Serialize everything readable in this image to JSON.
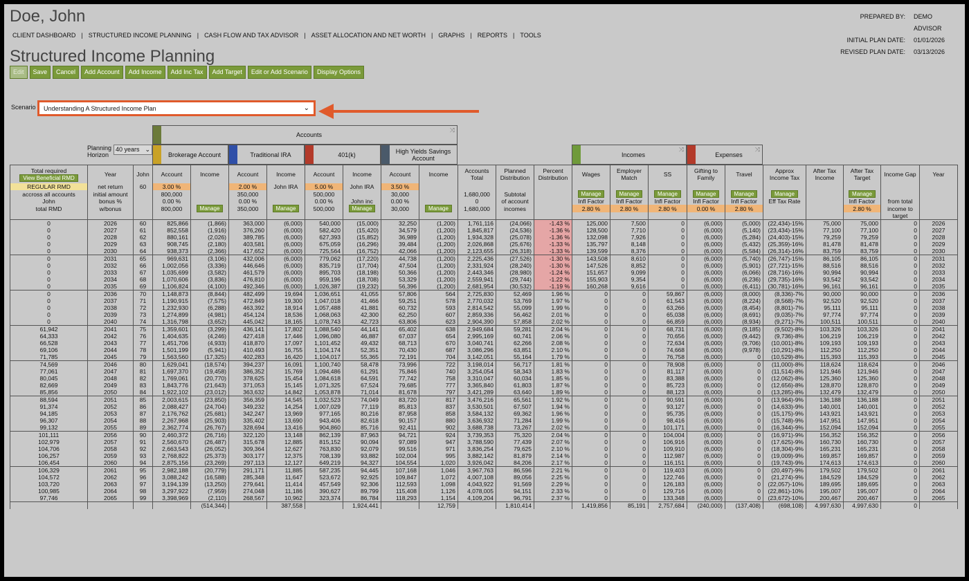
{
  "client_name": "Doe, John",
  "plan_info": [
    {
      "label": "PREPARED BY:",
      "value": "DEMO ADVISOR"
    },
    {
      "label": "INITIAL PLAN DATE:",
      "value": "01/01/2026"
    },
    {
      "label": "REVISED PLAN DATE:",
      "value": "03/13/2026"
    }
  ],
  "nav": [
    "CLIENT DASHBOARD",
    "STRUCTURED INCOME PLANNING",
    "CASH FLOW AND TAX ADVISOR",
    "ASSET ALLOCATION AND NET WORTH",
    "GRAPHS",
    "REPORTS",
    "TOOLS"
  ],
  "page_title": "Structured Income Planning",
  "toolbar": [
    "Edit",
    "Save",
    "Cancel",
    "Add Account",
    "Add Income",
    "Add Inc Tax",
    "Add Target",
    "Edit or Add Scenario",
    "Display Options"
  ],
  "scenario": {
    "label": "Scenario",
    "value": "Understanding A Structured Income Plan"
  },
  "horizon": {
    "label": "Planning Horizon",
    "value": "40 years"
  },
  "groups": {
    "accounts": "Accounts",
    "incomes": "Incomes",
    "expenses": "Expenses"
  },
  "accounts": [
    "Brokerage Account",
    "Traditional IRA",
    "401(k)",
    "High Yields Savings Account"
  ],
  "colors": {
    "brokerage": "#c9a227",
    "ira": "#2f4fa8",
    "k401": "#b33a2a",
    "savings": "#4a5a6a",
    "accounts_bar": "#6b7a3a",
    "incomes_bar": "#6f9a3a",
    "expenses_bar": "#b33a2a",
    "accent_green": "#7a9a3a",
    "callout": "#e05a2b"
  },
  "headers": [
    "Total required",
    "Year",
    "John",
    "Account",
    "Income",
    "Account",
    "Income",
    "Account",
    "Income",
    "Account",
    "Income",
    "Accounts Total",
    "Planned Distribution",
    "Percent Distribution",
    "Wages",
    "Employer Match",
    "SS",
    "Gifting to Family",
    "Travel",
    "Approx Income Tax",
    "After Tax Income",
    "After Tax Target",
    "Income Gap",
    "Year"
  ],
  "view_rmd_button": "View Beneficial RMD",
  "setup": {
    "r1": [
      "REGULAR RMD",
      "net return",
      "60",
      "3.00  %",
      "",
      "2.00  %",
      "John IRA",
      "5.00  %",
      "John IRA",
      "3.50  %",
      "",
      "",
      "",
      "",
      "",
      "",
      "",
      "",
      "",
      "",
      "",
      "",
      "",
      ""
    ],
    "r2": [
      "accross all accounts",
      "initial amount",
      "",
      "800,000",
      "",
      "350,000",
      "",
      "500,000",
      "",
      "30,000",
      "",
      "1,680,000",
      "Subtotal",
      "",
      "Manage",
      "Manage",
      "Manage",
      "Manage",
      "Manage",
      "Manage",
      "",
      "Manage",
      "",
      ""
    ],
    "r3": [
      "John",
      "bonus %",
      "",
      "0.00  %",
      "",
      "0.00  %",
      "",
      "0.00  %",
      "John inc",
      "0.00  %",
      "",
      "0",
      "of account",
      "",
      "Infl Factor",
      "Infl Factor",
      "Infl Factor",
      "Infl Factor",
      "Infl Factor",
      "Eff Tax Rate",
      "",
      "Infl Factor",
      "from total",
      ""
    ],
    "r4": [
      "total RMD",
      "w/bonus",
      "",
      "800,000",
      "Manage",
      "350,000",
      "Manage",
      "500,000",
      "Manage",
      "30,000",
      "Manage",
      "1,680,000",
      "incomes",
      "",
      "2.80  %",
      "2.80  %",
      "2.80  %",
      "0.00  %",
      "2.80  %",
      "",
      "",
      "2.80  %",
      "income to",
      ""
    ],
    "r5": [
      "",
      "",
      "",
      "",
      "",
      "",
      "",
      "",
      "",
      "",
      "",
      "",
      "",
      "",
      "",
      "",
      "",
      "",
      "",
      "",
      "",
      "",
      "target",
      ""
    ]
  },
  "rows": [
    [
      "0",
      "2026",
      "60",
      "825,866",
      "(1,866)",
      "363,000",
      "(6,000)",
      "540,000",
      "(15,000)",
      "32,250",
      "(1,200)",
      "1,761,116",
      "(24,066)",
      "-1.43  %",
      "125,000",
      "7,500",
      "0",
      "(6,000)",
      "(5,000)",
      "(22,434)-15%",
      "75,000",
      "75,000",
      "0",
      "2026"
    ],
    [
      "0",
      "2027",
      "61",
      "852,558",
      "(1,916)",
      "376,260",
      "(6,000)",
      "582,420",
      "(15,420)",
      "34,579",
      "(1,200)",
      "1,845,817",
      "(24,536)",
      "-1.36  %",
      "128,500",
      "7,710",
      "0",
      "(6,000)",
      "(5,140)",
      "(23,434)-15%",
      "77,100",
      "77,100",
      "0",
      "2027"
    ],
    [
      "0",
      "2028",
      "62",
      "880,161",
      "(2,026)",
      "389,785",
      "(6,000)",
      "627,393",
      "(15,852)",
      "36,989",
      "(1,200)",
      "1,934,328",
      "(25,078)",
      "-1.36  %",
      "132,098",
      "7,926",
      "0",
      "(6,000)",
      "(5,284)",
      "(24,403)-15%",
      "79,259",
      "79,259",
      "0",
      "2028"
    ],
    [
      "0",
      "2029",
      "63",
      "908,745",
      "(2,180)",
      "403,581",
      "(6,000)",
      "675,059",
      "(16,296)",
      "39,484",
      "(1,200)",
      "2,026,868",
      "(25,676)",
      "-1.33  %",
      "135,797",
      "8,148",
      "0",
      "(6,000)",
      "(5,432)",
      "(25,359)-16%",
      "81,478",
      "81,478",
      "0",
      "2029"
    ],
    [
      "0",
      "2030",
      "64",
      "938,373",
      "(2,366)",
      "417,652",
      "(6,000)",
      "725,564",
      "(16,752)",
      "42,066",
      "(1,200)",
      "2,123,655",
      "(26,318)",
      "-1.33  %",
      "139,599",
      "8,376",
      "0",
      "(6,000)",
      "(5,584)",
      "(26,314)-16%",
      "83,759",
      "83,759",
      "0",
      "2030"
    ],
    [
      "0",
      "2031",
      "65",
      "969,631",
      "(3,106)",
      "432,006",
      "(6,000)",
      "779,062",
      "(17,220)",
      "44,738",
      "(1,200)",
      "2,225,436",
      "(27,526)",
      "-1.30  %",
      "143,508",
      "8,610",
      "0",
      "(6,000)",
      "(5,740)",
      "(26,747)-15%",
      "86,105",
      "86,105",
      "0",
      "2031"
    ],
    [
      "0",
      "2032",
      "66",
      "1,002,056",
      "(3,336)",
      "446,646",
      "(6,000)",
      "835,719",
      "(17,704)",
      "47,504",
      "(1,200)",
      "2,331,924",
      "(28,240)",
      "-1.30  %",
      "147,526",
      "8,852",
      "0",
      "(6,000)",
      "(5,901)",
      "(27,721)-15%",
      "88,516",
      "88,516",
      "0",
      "2032"
    ],
    [
      "0",
      "2033",
      "67",
      "1,035,699",
      "(3,582)",
      "461,579",
      "(6,000)",
      "895,703",
      "(18,198)",
      "50,366",
      "(1,200)",
      "2,443,346",
      "(28,980)",
      "-1.24  %",
      "151,657",
      "9,099",
      "0",
      "(6,000)",
      "(6,066)",
      "(28,716)-16%",
      "90,994",
      "90,994",
      "0",
      "2033"
    ],
    [
      "0",
      "2034",
      "68",
      "1,070,606",
      "(3,836)",
      "476,810",
      "(6,000)",
      "959,196",
      "(18,708)",
      "53,329",
      "(1,200)",
      "2,559,941",
      "(29,744)",
      "-1.22  %",
      "155,903",
      "9,354",
      "0",
      "(6,000)",
      "(6,236)",
      "(29,735)-16%",
      "93,542",
      "93,542",
      "0",
      "2034"
    ],
    [
      "0",
      "2035",
      "69",
      "1,106,824",
      "(4,100)",
      "492,346",
      "(6,000)",
      "1,026,387",
      "(19,232)",
      "56,396",
      "(1,200)",
      "2,681,954",
      "(30,532)",
      "-1.19  %",
      "160,268",
      "9,616",
      "0",
      "(6,000)",
      "(6,411)",
      "(30,781)-16%",
      "96,161",
      "96,161",
      "0",
      "2035"
    ],
    [
      "0",
      "2036",
      "70",
      "1,148,873",
      "(8,844)",
      "482,499",
      "19,694",
      "1,036,651",
      "41,055",
      "57,806",
      "564",
      "2,725,830",
      "52,469",
      "1.96  %",
      "0",
      "0",
      "59,867",
      "(6,000)",
      "(8,000)",
      "(8,336)-7%",
      "90,000",
      "90,000",
      "0",
      "2036"
    ],
    [
      "0",
      "2037",
      "71",
      "1,190,915",
      "(7,575)",
      "472,849",
      "19,300",
      "1,047,018",
      "41,466",
      "59,251",
      "578",
      "2,770,032",
      "53,769",
      "1.97  %",
      "0",
      "0",
      "61,543",
      "(6,000)",
      "(8,224)",
      "(8,568)-7%",
      "92,520",
      "92,520",
      "0",
      "2037"
    ],
    [
      "0",
      "2038",
      "72",
      "1,232,930",
      "(6,288)",
      "463,392",
      "18,914",
      "1,057,488",
      "41,881",
      "60,732",
      "593",
      "2,814,542",
      "55,099",
      "1.99  %",
      "0",
      "0",
      "63,266",
      "(6,000)",
      "(8,454)",
      "(8,801)-7%",
      "95,111",
      "95,111",
      "0",
      "2038"
    ],
    [
      "0",
      "2039",
      "73",
      "1,274,899",
      "(4,981)",
      "454,124",
      "18,536",
      "1,068,063",
      "42,300",
      "62,250",
      "607",
      "2,859,336",
      "56,462",
      "2.01  %",
      "0",
      "0",
      "65,038",
      "(6,000)",
      "(8,691)",
      "(9,035)-7%",
      "97,774",
      "97,774",
      "0",
      "2039"
    ],
    [
      "0",
      "2040",
      "74",
      "1,316,798",
      "(3,652)",
      "445,042",
      "18,165",
      "1,078,743",
      "42,723",
      "63,806",
      "623",
      "2,904,390",
      "57,858",
      "2.02  %",
      "0",
      "0",
      "66,859",
      "(6,000)",
      "(8,934)",
      "(9,271)-7%",
      "100,511",
      "100,511",
      "0",
      "2040"
    ],
    [
      "61,942",
      "2041",
      "75",
      "1,359,601",
      "(3,299)",
      "436,141",
      "17,802",
      "1,088,540",
      "44,141",
      "65,402",
      "638",
      "2,949,684",
      "59,281",
      "2.04  %",
      "0",
      "0",
      "68,731",
      "(6,000)",
      "(9,185)",
      "(9,502)-8%",
      "103,326",
      "103,326",
      "0",
      "2041"
    ],
    [
      "64,333",
      "2042",
      "76",
      "1,404,635",
      "(4,246)",
      "427,418",
      "17,446",
      "1,096,080",
      "46,887",
      "67,037",
      "654",
      "2,995,169",
      "60,741",
      "2.06  %",
      "0",
      "0",
      "70,656",
      "(6,000)",
      "(9,442)",
      "(9,736)-8%",
      "106,219",
      "106,219",
      "0",
      "2042"
    ],
    [
      "66,528",
      "2043",
      "77",
      "1,451,706",
      "(4,933)",
      "418,870",
      "17,097",
      "1,101,452",
      "49,432",
      "68,713",
      "670",
      "3,040,741",
      "62,266",
      "2.08  %",
      "0",
      "0",
      "72,634",
      "(6,000)",
      "(9,706)",
      "(10,001)-8%",
      "109,193",
      "109,193",
      "0",
      "2043"
    ],
    [
      "69,106",
      "2044",
      "78",
      "1,501,199",
      "(5,941)",
      "410,493",
      "16,755",
      "1,104,174",
      "52,351",
      "70,430",
      "687",
      "3,086,296",
      "63,851",
      "2.10  %",
      "0",
      "0",
      "74,668",
      "(6,000)",
      "(9,978)",
      "(10,291)-8%",
      "112,250",
      "112,250",
      "0",
      "2044"
    ],
    [
      "71,785",
      "2045",
      "79",
      "1,563,560",
      "(17,325)",
      "402,283",
      "16,420",
      "1,104,017",
      "55,365",
      "72,191",
      "704",
      "3,142,051",
      "55,164",
      "1.79  %",
      "0",
      "0",
      "76,758",
      "(6,000)",
      "0",
      "(10,529)-8%",
      "115,393",
      "115,393",
      "0",
      "2045"
    ],
    [
      "74,569",
      "2046",
      "80",
      "1,629,041",
      "(18,574)",
      "394,237",
      "16,091",
      "1,100,740",
      "58,478",
      "73,996",
      "722",
      "3,198,014",
      "56,717",
      "1.81  %",
      "0",
      "0",
      "78,908",
      "(6,000)",
      "0",
      "(11,000)-8%",
      "118,624",
      "118,624",
      "0",
      "2046"
    ],
    [
      "77,061",
      "2047",
      "81",
      "1,697,370",
      "(19,458)",
      "386,352",
      "15,769",
      "1,094,486",
      "61,291",
      "75,846",
      "740",
      "3,254,054",
      "58,343",
      "1.83  %",
      "0",
      "0",
      "81,117",
      "(6,000)",
      "0",
      "(11,514)-8%",
      "121,946",
      "121,946",
      "0",
      "2047"
    ],
    [
      "80,045",
      "2048",
      "82",
      "1,769,061",
      "(20,770)",
      "378,625",
      "15,454",
      "1,084,618",
      "64,591",
      "77,742",
      "758",
      "3,310,047",
      "60,034",
      "1.85  %",
      "0",
      "0",
      "83,388",
      "(6,000)",
      "0",
      "(12,062)-8%",
      "125,360",
      "125,360",
      "0",
      "2048"
    ],
    [
      "82,669",
      "2049",
      "83",
      "1,843,776",
      "(21,643)",
      "371,053",
      "15,145",
      "1,071,325",
      "67,524",
      "79,685",
      "777",
      "3,365,840",
      "61,803",
      "1.87  %",
      "0",
      "0",
      "85,723",
      "(6,000)",
      "0",
      "(12,656)-8%",
      "128,870",
      "128,870",
      "0",
      "2049"
    ],
    [
      "85,856",
      "2050",
      "84",
      "1,922,102",
      "(23,012)",
      "363,632",
      "14,842",
      "1,053,878",
      "71,014",
      "81,678",
      "797",
      "3,421,289",
      "63,640",
      "1.89  %",
      "0",
      "0",
      "88,123",
      "(6,000)",
      "0",
      "(13,285)-8%",
      "132,479",
      "132,479",
      "0",
      "2050"
    ],
    [
      "88,594",
      "2051",
      "85",
      "2,003,615",
      "(23,850)",
      "356,359",
      "14,545",
      "1,032,523",
      "74,049",
      "83,720",
      "817",
      "3,476,216",
      "65,561",
      "1.92  %",
      "0",
      "0",
      "90,591",
      "(6,000)",
      "0",
      "(13,964)-9%",
      "136,188",
      "136,188",
      "0",
      "2051"
    ],
    [
      "91,374",
      "2052",
      "86",
      "2,088,427",
      "(24,704)",
      "349,232",
      "14,254",
      "1,007,029",
      "77,119",
      "85,813",
      "837",
      "3,530,501",
      "67,507",
      "1.94  %",
      "0",
      "0",
      "93,127",
      "(6,000)",
      "0",
      "(14,633)-9%",
      "140,001",
      "140,001",
      "0",
      "2052"
    ],
    [
      "94,185",
      "2053",
      "87",
      "2,176,762",
      "(25,681)",
      "342,247",
      "13,969",
      "977,165",
      "80,216",
      "87,958",
      "858",
      "3,584,132",
      "69,362",
      "1.96  %",
      "0",
      "0",
      "95,735",
      "(6,000)",
      "0",
      "(15,175)-9%",
      "143,921",
      "143,921",
      "0",
      "2053"
    ],
    [
      "96,307",
      "2054",
      "88",
      "2,267,968",
      "(25,903)",
      "335,402",
      "13,690",
      "943,406",
      "82,618",
      "90,157",
      "880",
      "3,636,932",
      "71,284",
      "1.99  %",
      "0",
      "0",
      "98,416",
      "(6,000)",
      "0",
      "(15,748)-9%",
      "147,951",
      "147,951",
      "0",
      "2054"
    ],
    [
      "99,132",
      "2055",
      "89",
      "2,362,774",
      "(26,767)",
      "328,694",
      "13,416",
      "904,860",
      "85,716",
      "92,411",
      "902",
      "3,688,738",
      "73,267",
      "2.02  %",
      "0",
      "0",
      "101,171",
      "(6,000)",
      "0",
      "(16,344)-9%",
      "152,094",
      "152,094",
      "0",
      "2055"
    ],
    [
      "101,111",
      "2056",
      "90",
      "2,460,372",
      "(26,716)",
      "322,120",
      "13,148",
      "862,139",
      "87,963",
      "94,721",
      "924",
      "3,739,353",
      "75,320",
      "2.04  %",
      "0",
      "0",
      "104,004",
      "(6,000)",
      "0",
      "(16,971)-9%",
      "156,352",
      "156,352",
      "0",
      "2056"
    ],
    [
      "102,979",
      "2057",
      "91",
      "2,560,670",
      "(26,487)",
      "315,678",
      "12,885",
      "815,152",
      "90,094",
      "97,089",
      "947",
      "3,788,590",
      "77,439",
      "2.07  %",
      "0",
      "0",
      "106,916",
      "(6,000)",
      "0",
      "(17,625)-9%",
      "160,730",
      "160,730",
      "0",
      "2057"
    ],
    [
      "104,706",
      "2058",
      "92",
      "2,663,543",
      "(26,052)",
      "309,364",
      "12,627",
      "763,830",
      "92,079",
      "99,516",
      "971",
      "3,836,254",
      "79,625",
      "2.10  %",
      "0",
      "0",
      "109,910",
      "(6,000)",
      "0",
      "(18,304)-9%",
      "165,231",
      "165,231",
      "0",
      "2058"
    ],
    [
      "106,257",
      "2059",
      "93",
      "2,768,822",
      "(25,373)",
      "303,177",
      "12,375",
      "708,139",
      "93,882",
      "102,004",
      "995",
      "3,882,142",
      "81,879",
      "2.14  %",
      "0",
      "0",
      "112,987",
      "(6,000)",
      "0",
      "(19,009)-9%",
      "169,857",
      "169,857",
      "0",
      "2059"
    ],
    [
      "106,454",
      "2060",
      "94",
      "2,875,156",
      "(23,269)",
      "297,113",
      "12,127",
      "649,219",
      "94,327",
      "104,554",
      "1,020",
      "3,926,042",
      "84,206",
      "2.17  %",
      "0",
      "0",
      "116,151",
      "(6,000)",
      "0",
      "(19,743)-9%",
      "174,613",
      "174,613",
      "0",
      "2060"
    ],
    [
      "106,329",
      "2061",
      "95",
      "2,982,188",
      "(20,779)",
      "291,171",
      "11,885",
      "587,235",
      "94,445",
      "107,168",
      "1,046",
      "3,967,763",
      "86,596",
      "2.21  %",
      "0",
      "0",
      "119,403",
      "(6,000)",
      "0",
      "(20,497)-9%",
      "179,502",
      "179,502",
      "0",
      "2061"
    ],
    [
      "104,572",
      "2062",
      "96",
      "3,088,242",
      "(16,588)",
      "285,348",
      "11,647",
      "523,672",
      "92,925",
      "109,847",
      "1,072",
      "4,007,108",
      "89,056",
      "2.25  %",
      "0",
      "0",
      "122,746",
      "(6,000)",
      "0",
      "(21,274)-9%",
      "184,529",
      "184,529",
      "0",
      "2062"
    ],
    [
      "103,720",
      "2063",
      "97",
      "3,194,139",
      "(13,250)",
      "279,641",
      "11,414",
      "457,549",
      "92,306",
      "112,593",
      "1,098",
      "4,043,922",
      "91,569",
      "2.29  %",
      "0",
      "0",
      "126,183",
      "(6,000)",
      "0",
      "(22,057)-10%",
      "189,695",
      "189,695",
      "0",
      "2063"
    ],
    [
      "100,985",
      "2064",
      "98",
      "3,297,922",
      "(7,959)",
      "274,048",
      "11,186",
      "390,627",
      "89,799",
      "115,408",
      "1,126",
      "4,078,005",
      "94,151",
      "2.33  %",
      "0",
      "0",
      "129,716",
      "(6,000)",
      "0",
      "(22,861)-10%",
      "195,007",
      "195,007",
      "0",
      "2064"
    ],
    [
      "97,746",
      "2065",
      "99",
      "3,398,969",
      "(2,110)",
      "268,567",
      "10,962",
      "323,374",
      "86,784",
      "118,293",
      "1,154",
      "4,109,204",
      "96,791",
      "2.37  %",
      "0",
      "0",
      "133,348",
      "(6,000)",
      "0",
      "(23,672)-10%",
      "200,467",
      "200,467",
      "0",
      "2065"
    ]
  ],
  "totals": [
    "",
    "",
    "",
    "",
    "(514,344)",
    "",
    "387,558",
    "",
    "1,924,441",
    "",
    "12,759",
    "",
    "1,810,414",
    "",
    "1,419,856",
    "85,191",
    "2,757,684",
    "(240,000)",
    "(137,408)",
    "(698,108)",
    "4,997,630",
    "4,997,630",
    "0",
    ""
  ]
}
